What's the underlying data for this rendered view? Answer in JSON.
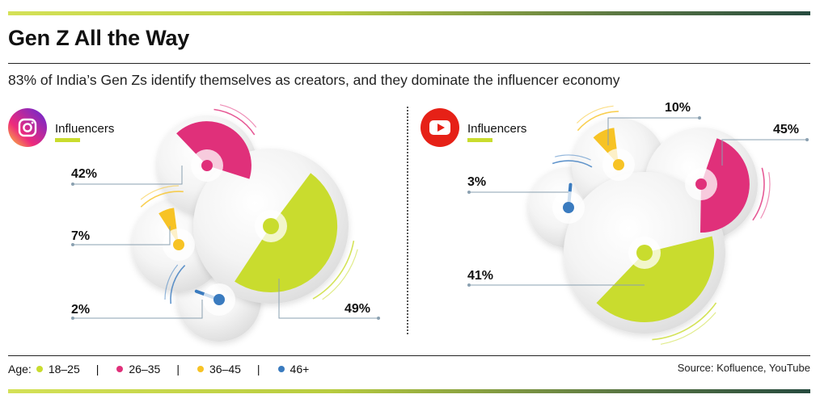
{
  "header": {
    "title": "Gen Z All the Way",
    "subtitle": "83% of India’s Gen Zs identify themselves as creators, and they dominate the influencer economy"
  },
  "chart_data": [
    {
      "type": "pie",
      "platform_icon": "instagram-icon",
      "platform_label": "Influencers",
      "categories": [
        "18–25",
        "26–35",
        "36–45",
        "46+"
      ],
      "values": [
        49,
        42,
        7,
        2
      ],
      "labels": [
        "49%",
        "42%",
        "7%",
        "2%"
      ]
    },
    {
      "type": "pie",
      "platform_icon": "youtube-icon",
      "platform_label": "Influencers",
      "categories": [
        "18–25",
        "26–35",
        "36–45",
        "46+"
      ],
      "values": [
        41,
        45,
        10,
        3
      ],
      "labels": [
        "41%",
        "45%",
        "10%",
        "3%"
      ]
    }
  ],
  "legend": {
    "label": "Age:",
    "items": [
      {
        "name": "18–25",
        "color": "#c9dc2e"
      },
      {
        "name": "26–35",
        "color": "#e0307a"
      },
      {
        "name": "36–45",
        "color": "#f7c325"
      },
      {
        "name": "46+",
        "color": "#3a7bbf"
      }
    ],
    "separator": "|"
  },
  "source": "Source: Kofluence, YouTube",
  "colors": {
    "accent_green": "#c9dc2e",
    "accent_pink": "#e0307a",
    "accent_yellow": "#f7c325",
    "accent_blue": "#3a7bbf",
    "instagram_gradient": [
      "#f58529",
      "#dd2a7b",
      "#8134af"
    ],
    "youtube_red": "#e62117"
  }
}
